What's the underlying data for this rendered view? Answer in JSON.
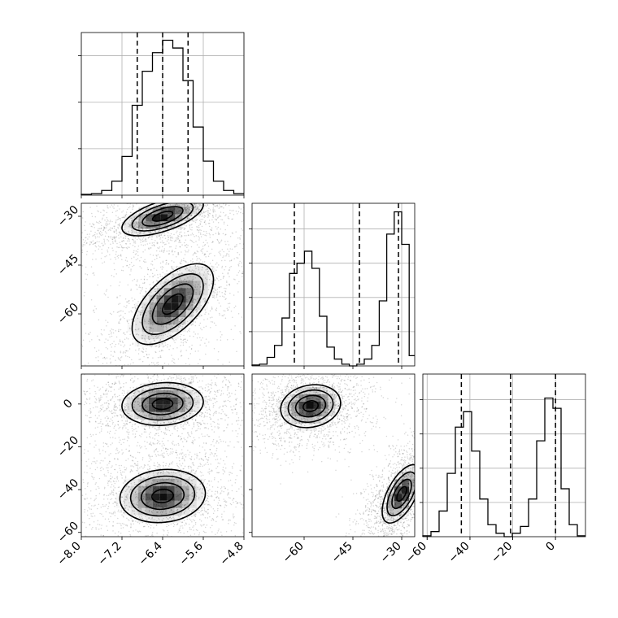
{
  "chart_data": {
    "type": "corner",
    "grid": true,
    "xlabel": "",
    "ylabel": "",
    "parameters": [
      {
        "range": [
          -8.0,
          -4.8
        ],
        "ticks": [
          -8.0,
          -7.2,
          -6.4,
          -5.6,
          -4.8
        ],
        "tick_labels": [
          "−8.0",
          "−7.2",
          "−6.4",
          "−5.6",
          "−4.8"
        ]
      },
      {
        "range": [
          -76,
          -26
        ],
        "ticks": [
          -60,
          -45,
          -30
        ],
        "tick_labels": [
          "−60",
          "−45",
          "−30"
        ]
      },
      {
        "range": [
          -62,
          14
        ],
        "ticks": [
          -60,
          -40,
          -20,
          0
        ],
        "tick_labels": [
          "−60",
          "−40",
          "−20",
          "0"
        ]
      }
    ],
    "histograms": [
      {
        "param": 0,
        "bins": [
          -8.0,
          -7.8,
          -7.6,
          -7.4,
          -7.2,
          -7.0,
          -6.8,
          -6.6,
          -6.4,
          -6.2,
          -6.0,
          -5.8,
          -5.6,
          -5.4,
          -5.2,
          -5.0,
          -4.8
        ],
        "counts": [
          0.5,
          1,
          3,
          9,
          25,
          58,
          80,
          92,
          100,
          95,
          74,
          44,
          22,
          9,
          3,
          1
        ],
        "ylim": [
          0,
          105
        ],
        "yticks": [
          30,
          60,
          90
        ],
        "quantiles": [
          -6.9,
          -6.4,
          -5.9
        ]
      },
      {
        "param": 1,
        "bins": [
          -76,
          -73.7,
          -71.4,
          -69.1,
          -66.8,
          -64.5,
          -62.2,
          -59.9,
          -57.6,
          -55.3,
          -53,
          -50.7,
          -48.4,
          -46.1,
          -43.8,
          -41.5,
          -39.2,
          -36.9,
          -34.6,
          -32.3,
          -30,
          -27.7,
          -26
        ],
        "counts": [
          0.5,
          1,
          5,
          12,
          28,
          54,
          60,
          67,
          57,
          29,
          11,
          4,
          1,
          0,
          1,
          4,
          12,
          38,
          77,
          90,
          71,
          6
        ],
        "ylim": [
          0,
          95
        ],
        "yticks": [
          20,
          40,
          60,
          80
        ],
        "quantiles": [
          -63,
          -43,
          -31
        ]
      },
      {
        "param": 2,
        "bins": [
          -62,
          -58.2,
          -54.4,
          -50.6,
          -46.8,
          -43,
          -39.2,
          -35.4,
          -31.6,
          -27.8,
          -24,
          -20.2,
          -16.4,
          -12.6,
          -8.8,
          -5,
          -1.2,
          2.6,
          6.4,
          10.2,
          14
        ],
        "counts": [
          0.5,
          3,
          15,
          37,
          64,
          73,
          50,
          22,
          7,
          2,
          0,
          2,
          6,
          22,
          56,
          81,
          75,
          28,
          7,
          0.5
        ],
        "ylim": [
          0,
          95
        ],
        "yticks": [
          20,
          40,
          60,
          80
        ],
        "quantiles": [
          -44,
          -21,
          0
        ]
      }
    ],
    "joint": [
      {
        "x_param": 0,
        "y_param": 1,
        "modes": [
          {
            "center": [
              -6.4,
              -30
            ],
            "sx": 0.4,
            "sy": 3.0,
            "rho": 0.6,
            "weight": 0.5
          },
          {
            "center": [
              -6.2,
              -57
            ],
            "sx": 0.4,
            "sy": 6.2,
            "rho": 0.6,
            "weight": 0.5
          }
        ]
      },
      {
        "x_param": 0,
        "y_param": 2,
        "modes": [
          {
            "center": [
              -6.4,
              0
            ],
            "sx": 0.4,
            "sy": 5.0,
            "rho": 0.1,
            "weight": 0.5
          },
          {
            "center": [
              -6.4,
              -43
            ],
            "sx": 0.42,
            "sy": 6.2,
            "rho": 0.1,
            "weight": 0.5
          }
        ]
      },
      {
        "x_param": 1,
        "y_param": 2,
        "modes": [
          {
            "center": [
              -58,
              -1
            ],
            "sx": 4.6,
            "sy": 5.0,
            "rho": 0.15,
            "weight": 0.5
          },
          {
            "center": [
              -30,
              -42
            ],
            "sx": 3.0,
            "sy": 6.8,
            "rho": 0.6,
            "weight": 0.5
          }
        ]
      }
    ]
  }
}
